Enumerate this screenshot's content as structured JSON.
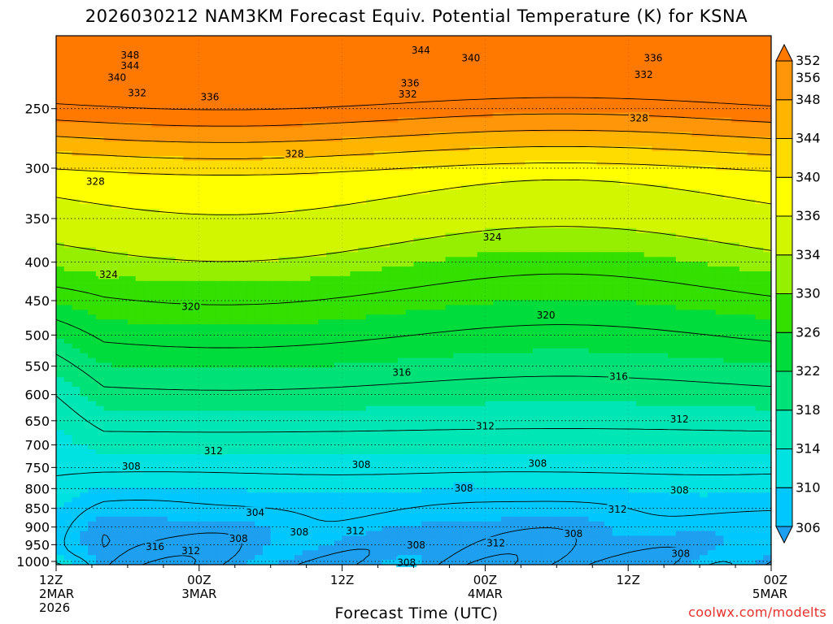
{
  "title": "2026030212 NAM3KM Forecast Equiv. Potential Temperature (K) for KSNA",
  "credit": "coolwx.com/modelts",
  "chart_data": {
    "type": "heatmap",
    "title": "2026030212 NAM3KM Forecast Equiv. Potential Temperature (K) for KSNA",
    "xlabel": "Forecast Time (UTC)",
    "ylabel": "",
    "x_ticks": [
      {
        "hour": 0,
        "lines": [
          "12Z",
          "2MAR",
          "2026"
        ]
      },
      {
        "hour": 12,
        "lines": [
          "00Z",
          "3MAR"
        ]
      },
      {
        "hour": 24,
        "lines": [
          "12Z"
        ]
      },
      {
        "hour": 36,
        "lines": [
          "00Z",
          "4MAR"
        ]
      },
      {
        "hour": 48,
        "lines": [
          "12Z"
        ]
      },
      {
        "hour": 60,
        "lines": [
          "00Z",
          "5MAR"
        ]
      }
    ],
    "x_range_hours": [
      0,
      60
    ],
    "y_ticks": [
      250,
      300,
      350,
      400,
      450,
      500,
      550,
      600,
      650,
      700,
      750,
      800,
      850,
      900,
      950,
      1000
    ],
    "y_range_hpa": [
      200,
      1010
    ],
    "y_scale": "log",
    "units": "K",
    "colorbar": {
      "levels": [
        306,
        310,
        314,
        318,
        322,
        326,
        330,
        334,
        336,
        340,
        344,
        348,
        352,
        356
      ],
      "colors": [
        "#1e9ff0",
        "#00c8ff",
        "#00e1e1",
        "#00e6b4",
        "#00e178",
        "#00dc3c",
        "#33e000",
        "#96ee00",
        "#d2f500",
        "#ffff00",
        "#ffdc00",
        "#ffb400",
        "#ff960a",
        "#ff7800"
      ]
    },
    "contour_interval": 4,
    "contour_labels": [
      {
        "hour": 6.2,
        "p": 212,
        "text": "348"
      },
      {
        "hour": 6.2,
        "p": 219,
        "text": "344"
      },
      {
        "hour": 5.1,
        "p": 227,
        "text": "340"
      },
      {
        "hour": 6.8,
        "p": 238,
        "text": "332"
      },
      {
        "hour": 12.9,
        "p": 241,
        "text": "336"
      },
      {
        "hour": 30.6,
        "p": 209,
        "text": "344"
      },
      {
        "hour": 34.8,
        "p": 214,
        "text": "340"
      },
      {
        "hour": 29.7,
        "p": 231,
        "text": "336"
      },
      {
        "hour": 29.5,
        "p": 239,
        "text": "332"
      },
      {
        "hour": 50.1,
        "p": 214,
        "text": "336"
      },
      {
        "hour": 49.3,
        "p": 225,
        "text": "332"
      },
      {
        "hour": 48.9,
        "p": 257,
        "text": "328"
      },
      {
        "hour": 20.0,
        "p": 287,
        "text": "328"
      },
      {
        "hour": 3.3,
        "p": 312,
        "text": "328"
      },
      {
        "hour": 36.6,
        "p": 370,
        "text": "324"
      },
      {
        "hour": 4.4,
        "p": 415,
        "text": "324"
      },
      {
        "hour": 11.3,
        "p": 458,
        "text": "320"
      },
      {
        "hour": 41.1,
        "p": 470,
        "text": "320"
      },
      {
        "hour": 29.0,
        "p": 560,
        "text": "316"
      },
      {
        "hour": 47.2,
        "p": 567,
        "text": "316"
      },
      {
        "hour": 36.0,
        "p": 660,
        "text": "312"
      },
      {
        "hour": 52.3,
        "p": 646,
        "text": "312"
      },
      {
        "hour": 13.2,
        "p": 712,
        "text": "312"
      },
      {
        "hour": 25.6,
        "p": 743,
        "text": "308"
      },
      {
        "hour": 40.4,
        "p": 740,
        "text": "308"
      },
      {
        "hour": 6.3,
        "p": 747,
        "text": "308"
      },
      {
        "hour": 34.2,
        "p": 798,
        "text": "308"
      },
      {
        "hour": 52.3,
        "p": 803,
        "text": "308"
      },
      {
        "hour": 16.7,
        "p": 860,
        "text": "304"
      },
      {
        "hour": 47.1,
        "p": 852,
        "text": "312"
      },
      {
        "hour": 20.4,
        "p": 913,
        "text": "308"
      },
      {
        "hour": 25.1,
        "p": 910,
        "text": "312"
      },
      {
        "hour": 15.3,
        "p": 932,
        "text": "308"
      },
      {
        "hour": 43.4,
        "p": 918,
        "text": "308"
      },
      {
        "hour": 36.9,
        "p": 944,
        "text": "312"
      },
      {
        "hour": 30.2,
        "p": 950,
        "text": "308"
      },
      {
        "hour": 8.3,
        "p": 955,
        "text": "316"
      },
      {
        "hour": 11.3,
        "p": 967,
        "text": "312"
      },
      {
        "hour": 29.4,
        "p": 1002,
        "text": "308"
      },
      {
        "hour": 52.4,
        "p": 975,
        "text": "308"
      }
    ]
  },
  "colors": {
    "ground": "#a0522d",
    "credit": "#e8302a"
  }
}
